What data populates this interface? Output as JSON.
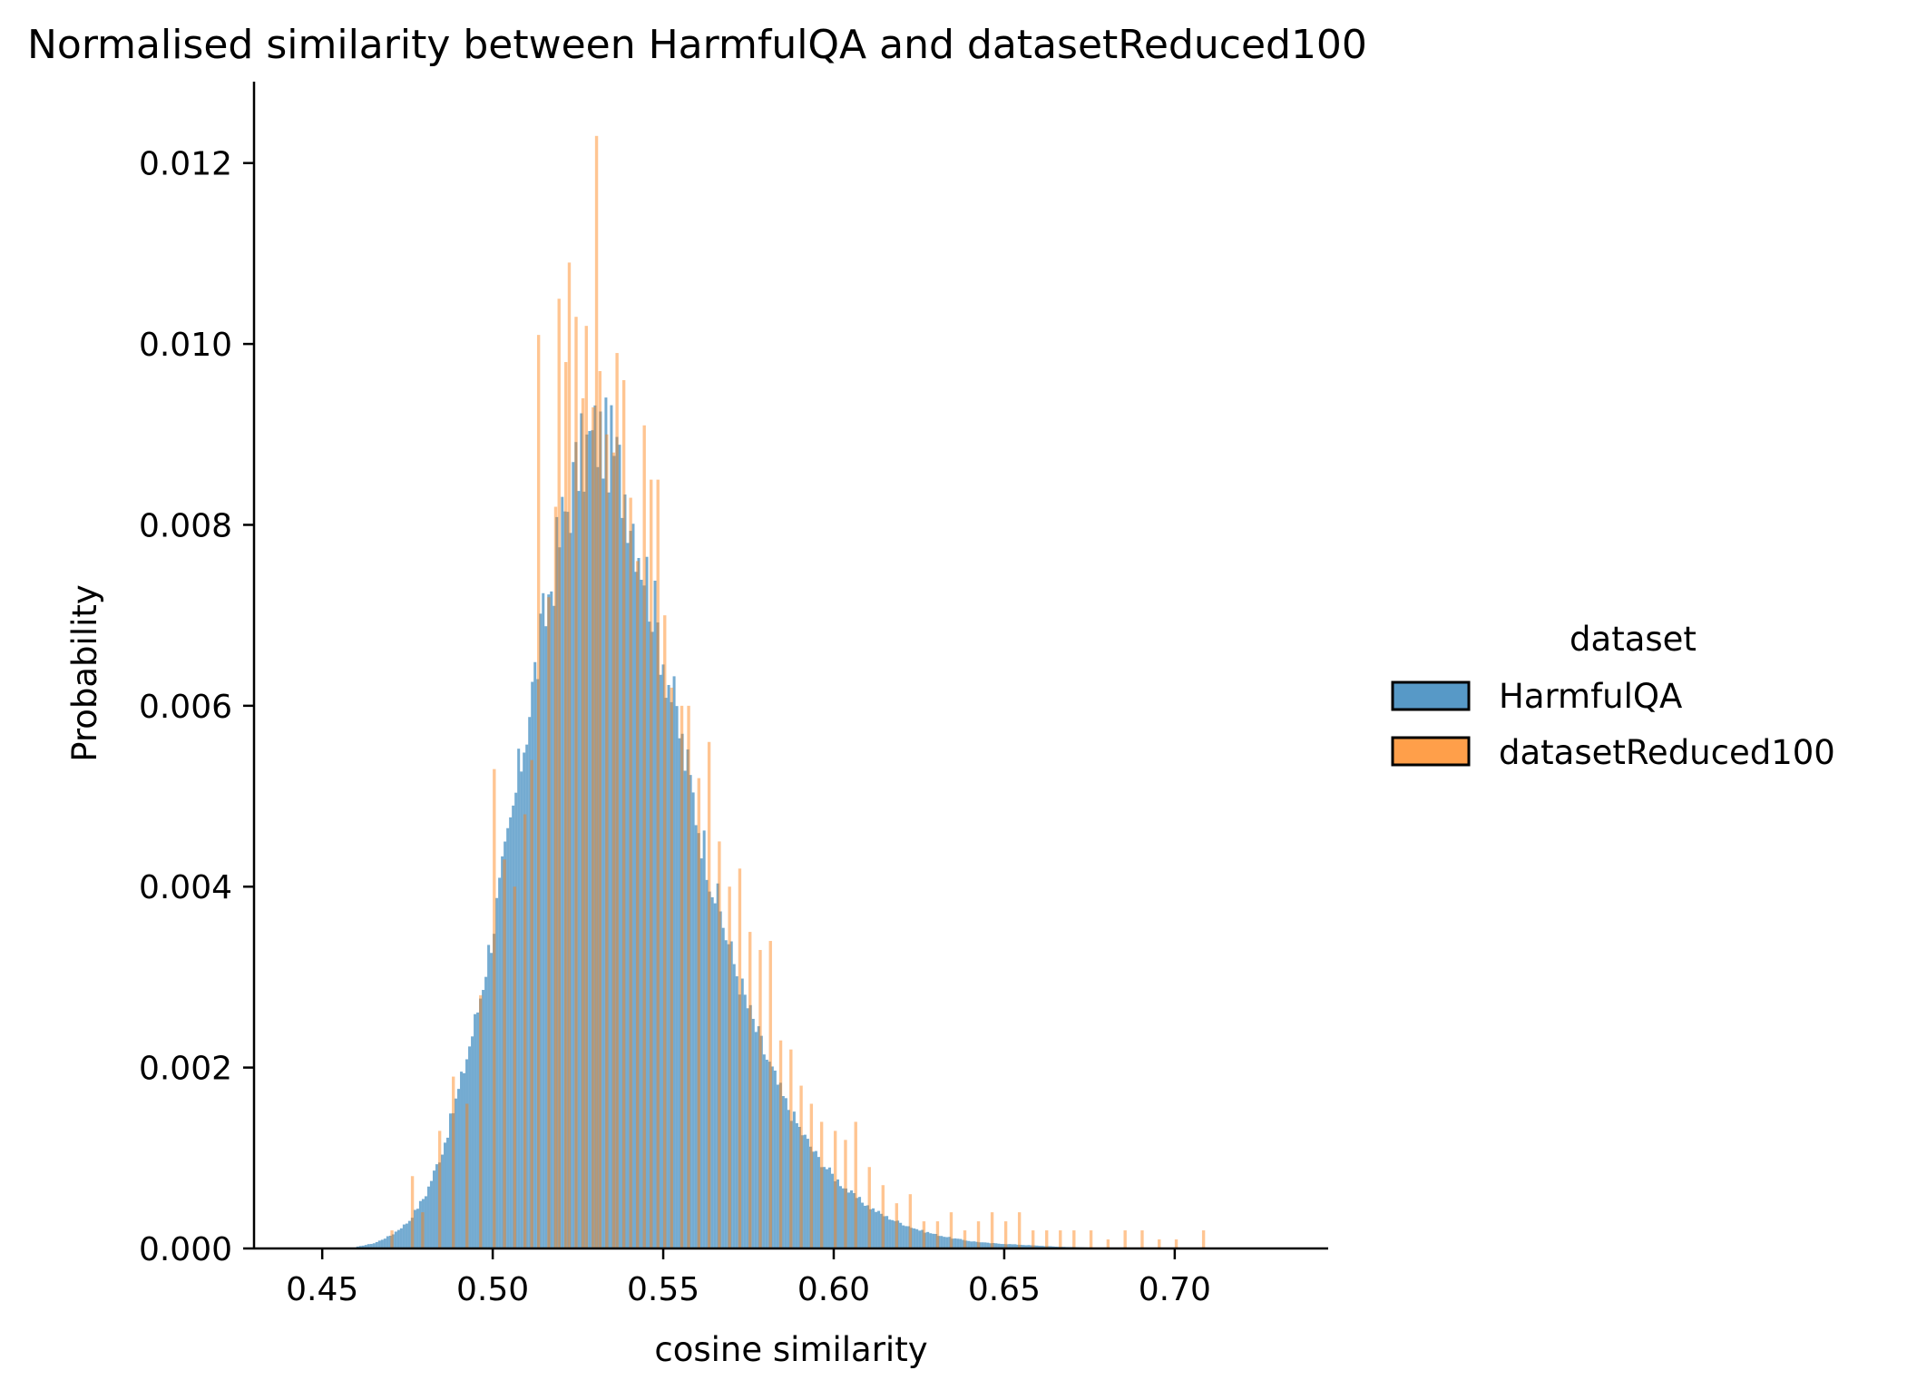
{
  "chart_data": {
    "type": "histogram",
    "title": "Normalised similarity between HarmfulQA and datasetReduced100",
    "xlabel": "cosine similarity",
    "ylabel": "Probability",
    "xlim": [
      0.43,
      0.745
    ],
    "ylim": [
      0,
      0.0129
    ],
    "x_ticks": [
      0.45,
      0.5,
      0.55,
      0.6,
      0.65,
      0.7
    ],
    "x_tick_labels": [
      "0.45",
      "0.50",
      "0.55",
      "0.60",
      "0.65",
      "0.70"
    ],
    "y_ticks": [
      0,
      0.002,
      0.004,
      0.006,
      0.008,
      0.01,
      0.012
    ],
    "y_tick_labels": [
      "0.000",
      "0.002",
      "0.004",
      "0.006",
      "0.008",
      "0.010",
      "0.012"
    ],
    "grid": false,
    "legend": {
      "title": "dataset",
      "placement": "right"
    },
    "series": [
      {
        "name": "HarmfulQA",
        "color": "#1f77b4",
        "bins": [
          {
            "x": 0.46,
            "y": 2e-05
          },
          {
            "x": 0.465,
            "y": 6e-05
          },
          {
            "x": 0.47,
            "y": 0.00015
          },
          {
            "x": 0.475,
            "y": 0.0003
          },
          {
            "x": 0.48,
            "y": 0.0006
          },
          {
            "x": 0.485,
            "y": 0.0011
          },
          {
            "x": 0.49,
            "y": 0.0018
          },
          {
            "x": 0.495,
            "y": 0.0026
          },
          {
            "x": 0.5,
            "y": 0.0036
          },
          {
            "x": 0.505,
            "y": 0.0047
          },
          {
            "x": 0.51,
            "y": 0.0059
          },
          {
            "x": 0.515,
            "y": 0.007
          },
          {
            "x": 0.52,
            "y": 0.008
          },
          {
            "x": 0.525,
            "y": 0.0087
          },
          {
            "x": 0.53,
            "y": 0.009
          },
          {
            "x": 0.535,
            "y": 0.0088
          },
          {
            "x": 0.54,
            "y": 0.0082
          },
          {
            "x": 0.545,
            "y": 0.0074
          },
          {
            "x": 0.55,
            "y": 0.0065
          },
          {
            "x": 0.555,
            "y": 0.0056
          },
          {
            "x": 0.56,
            "y": 0.0047
          },
          {
            "x": 0.565,
            "y": 0.0039
          },
          {
            "x": 0.57,
            "y": 0.0032
          },
          {
            "x": 0.575,
            "y": 0.0026
          },
          {
            "x": 0.58,
            "y": 0.0021
          },
          {
            "x": 0.585,
            "y": 0.00165
          },
          {
            "x": 0.59,
            "y": 0.0013
          },
          {
            "x": 0.595,
            "y": 0.001
          },
          {
            "x": 0.6,
            "y": 0.00078
          },
          {
            "x": 0.605,
            "y": 0.0006
          },
          {
            "x": 0.61,
            "y": 0.00046
          },
          {
            "x": 0.615,
            "y": 0.00035
          },
          {
            "x": 0.62,
            "y": 0.00027
          },
          {
            "x": 0.625,
            "y": 0.0002
          },
          {
            "x": 0.63,
            "y": 0.00015
          },
          {
            "x": 0.635,
            "y": 0.00011
          },
          {
            "x": 0.64,
            "y": 8e-05
          },
          {
            "x": 0.645,
            "y": 6e-05
          },
          {
            "x": 0.65,
            "y": 5e-05
          },
          {
            "x": 0.655,
            "y": 4e-05
          },
          {
            "x": 0.66,
            "y": 3e-05
          },
          {
            "x": 0.665,
            "y": 2e-05
          },
          {
            "x": 0.67,
            "y": 1.5e-05
          },
          {
            "x": 0.675,
            "y": 1e-05
          },
          {
            "x": 0.68,
            "y": 8e-06
          },
          {
            "x": 0.685,
            "y": 5e-06
          },
          {
            "x": 0.69,
            "y": 3e-06
          },
          {
            "x": 0.695,
            "y": 2e-06
          }
        ]
      },
      {
        "name": "datasetReduced100",
        "color": "#ff7f0e",
        "bins": [
          {
            "x": 0.47,
            "y": 0.0002
          },
          {
            "x": 0.476,
            "y": 0.0008
          },
          {
            "x": 0.479,
            "y": 0.0004
          },
          {
            "x": 0.484,
            "y": 0.0013
          },
          {
            "x": 0.488,
            "y": 0.0019
          },
          {
            "x": 0.492,
            "y": 0.0016
          },
          {
            "x": 0.496,
            "y": 0.0028
          },
          {
            "x": 0.5,
            "y": 0.0053
          },
          {
            "x": 0.503,
            "y": 0.0043
          },
          {
            "x": 0.506,
            "y": 0.004
          },
          {
            "x": 0.509,
            "y": 0.0048
          },
          {
            "x": 0.511,
            "y": 0.0054
          },
          {
            "x": 0.513,
            "y": 0.0101
          },
          {
            "x": 0.516,
            "y": 0.0072
          },
          {
            "x": 0.518,
            "y": 0.0082
          },
          {
            "x": 0.519,
            "y": 0.0105
          },
          {
            "x": 0.521,
            "y": 0.0098
          },
          {
            "x": 0.522,
            "y": 0.0109
          },
          {
            "x": 0.524,
            "y": 0.0103
          },
          {
            "x": 0.526,
            "y": 0.0094
          },
          {
            "x": 0.527,
            "y": 0.0102
          },
          {
            "x": 0.529,
            "y": 0.0093
          },
          {
            "x": 0.53,
            "y": 0.0123
          },
          {
            "x": 0.531,
            "y": 0.0097
          },
          {
            "x": 0.533,
            "y": 0.009
          },
          {
            "x": 0.535,
            "y": 0.0088
          },
          {
            "x": 0.536,
            "y": 0.0099
          },
          {
            "x": 0.538,
            "y": 0.0096
          },
          {
            "x": 0.54,
            "y": 0.0083
          },
          {
            "x": 0.542,
            "y": 0.0076
          },
          {
            "x": 0.544,
            "y": 0.0091
          },
          {
            "x": 0.546,
            "y": 0.0085
          },
          {
            "x": 0.548,
            "y": 0.0085
          },
          {
            "x": 0.55,
            "y": 0.007
          },
          {
            "x": 0.552,
            "y": 0.0062
          },
          {
            "x": 0.555,
            "y": 0.006
          },
          {
            "x": 0.557,
            "y": 0.006
          },
          {
            "x": 0.56,
            "y": 0.0052
          },
          {
            "x": 0.563,
            "y": 0.0056
          },
          {
            "x": 0.566,
            "y": 0.0045
          },
          {
            "x": 0.569,
            "y": 0.004
          },
          {
            "x": 0.572,
            "y": 0.0042
          },
          {
            "x": 0.575,
            "y": 0.0035
          },
          {
            "x": 0.578,
            "y": 0.0033
          },
          {
            "x": 0.581,
            "y": 0.0034
          },
          {
            "x": 0.584,
            "y": 0.0023
          },
          {
            "x": 0.587,
            "y": 0.0022
          },
          {
            "x": 0.59,
            "y": 0.0018
          },
          {
            "x": 0.593,
            "y": 0.0016
          },
          {
            "x": 0.596,
            "y": 0.0014
          },
          {
            "x": 0.6,
            "y": 0.0013
          },
          {
            "x": 0.603,
            "y": 0.0012
          },
          {
            "x": 0.606,
            "y": 0.0014
          },
          {
            "x": 0.61,
            "y": 0.0009
          },
          {
            "x": 0.614,
            "y": 0.0007
          },
          {
            "x": 0.618,
            "y": 0.0005
          },
          {
            "x": 0.622,
            "y": 0.0006
          },
          {
            "x": 0.626,
            "y": 0.0003
          },
          {
            "x": 0.63,
            "y": 0.0003
          },
          {
            "x": 0.634,
            "y": 0.0004
          },
          {
            "x": 0.638,
            "y": 0.0002
          },
          {
            "x": 0.642,
            "y": 0.0003
          },
          {
            "x": 0.646,
            "y": 0.0004
          },
          {
            "x": 0.65,
            "y": 0.0003
          },
          {
            "x": 0.654,
            "y": 0.0004
          },
          {
            "x": 0.658,
            "y": 0.0002
          },
          {
            "x": 0.662,
            "y": 0.0002
          },
          {
            "x": 0.666,
            "y": 0.0002
          },
          {
            "x": 0.67,
            "y": 0.0002
          },
          {
            "x": 0.675,
            "y": 0.0002
          },
          {
            "x": 0.68,
            "y": 0.0001
          },
          {
            "x": 0.685,
            "y": 0.0002
          },
          {
            "x": 0.69,
            "y": 0.0002
          },
          {
            "x": 0.695,
            "y": 0.0001
          },
          {
            "x": 0.7,
            "y": 0.0001
          },
          {
            "x": 0.708,
            "y": 0.0002
          }
        ]
      }
    ]
  }
}
